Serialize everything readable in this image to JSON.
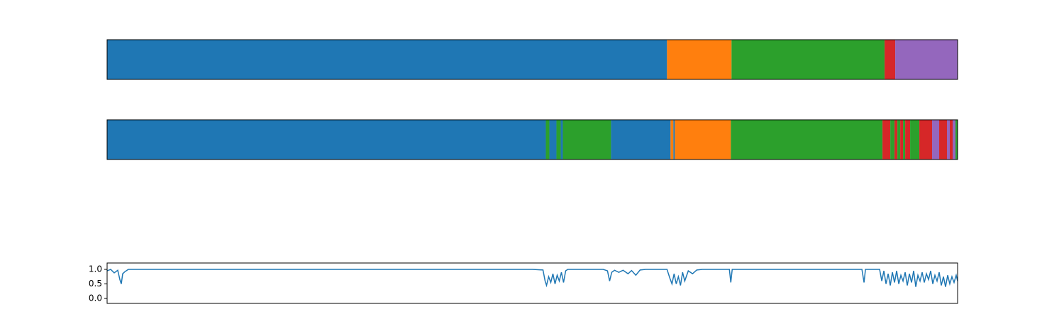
{
  "chart_data": [
    {
      "type": "segments",
      "xlim": [
        0,
        1200
      ],
      "segments": [
        {
          "start": 0,
          "end": 790,
          "color": "#1f77b4"
        },
        {
          "start": 790,
          "end": 881,
          "color": "#ff7f0e"
        },
        {
          "start": 881,
          "end": 1097,
          "color": "#2ca02c"
        },
        {
          "start": 1097,
          "end": 1112,
          "color": "#d62728"
        },
        {
          "start": 1112,
          "end": 1200,
          "color": "#9467bd"
        }
      ]
    },
    {
      "type": "segments",
      "xlim": [
        0,
        1200
      ],
      "segments": [
        {
          "start": 0,
          "end": 619,
          "color": "#1f77b4"
        },
        {
          "start": 619,
          "end": 624,
          "color": "#2ca02c"
        },
        {
          "start": 624,
          "end": 634,
          "color": "#1f77b4"
        },
        {
          "start": 634,
          "end": 640,
          "color": "#2ca02c"
        },
        {
          "start": 640,
          "end": 643,
          "color": "#1f77b4"
        },
        {
          "start": 643,
          "end": 711,
          "color": "#2ca02c"
        },
        {
          "start": 711,
          "end": 795,
          "color": "#1f77b4"
        },
        {
          "start": 795,
          "end": 799,
          "color": "#ff7f0e"
        },
        {
          "start": 799,
          "end": 801,
          "color": "#1f77b4"
        },
        {
          "start": 801,
          "end": 880,
          "color": "#ff7f0e"
        },
        {
          "start": 880,
          "end": 1094,
          "color": "#2ca02c"
        },
        {
          "start": 1094,
          "end": 1105,
          "color": "#d62728"
        },
        {
          "start": 1105,
          "end": 1111,
          "color": "#2ca02c"
        },
        {
          "start": 1111,
          "end": 1115,
          "color": "#d62728"
        },
        {
          "start": 1115,
          "end": 1119,
          "color": "#2ca02c"
        },
        {
          "start": 1119,
          "end": 1123,
          "color": "#d62728"
        },
        {
          "start": 1123,
          "end": 1126,
          "color": "#2ca02c"
        },
        {
          "start": 1126,
          "end": 1133,
          "color": "#d62728"
        },
        {
          "start": 1133,
          "end": 1146,
          "color": "#2ca02c"
        },
        {
          "start": 1146,
          "end": 1164,
          "color": "#d62728"
        },
        {
          "start": 1164,
          "end": 1174,
          "color": "#9467bd"
        },
        {
          "start": 1174,
          "end": 1185,
          "color": "#d62728"
        },
        {
          "start": 1185,
          "end": 1189,
          "color": "#9467bd"
        },
        {
          "start": 1189,
          "end": 1193,
          "color": "#d62728"
        },
        {
          "start": 1193,
          "end": 1197,
          "color": "#9467bd"
        },
        {
          "start": 1197,
          "end": 1200,
          "color": "#2ca02c"
        }
      ]
    },
    {
      "type": "line",
      "color": "#1f77b4",
      "xlim": [
        0,
        1200
      ],
      "ylim": [
        -0.17,
        1.22
      ],
      "yticks": [
        {
          "value": 0,
          "label": "0.0"
        },
        {
          "value": 0.5,
          "label": "0.5"
        },
        {
          "value": 1,
          "label": "1.0"
        }
      ],
      "x": [
        0,
        5,
        10,
        15,
        18,
        20,
        22,
        25,
        30,
        600,
        615,
        618,
        620,
        623,
        626,
        629,
        632,
        635,
        638,
        641,
        644,
        647,
        650,
        700,
        706,
        709,
        712,
        716,
        722,
        728,
        735,
        740,
        746,
        752,
        760,
        790,
        794,
        797,
        800,
        803,
        806,
        809,
        812,
        815,
        820,
        826,
        832,
        840,
        878,
        880,
        882,
        1065,
        1068,
        1070,
        1090,
        1093,
        1096,
        1099,
        1102,
        1105,
        1108,
        1111,
        1114,
        1117,
        1120,
        1123,
        1126,
        1129,
        1132,
        1135,
        1138,
        1141,
        1144,
        1147,
        1150,
        1153,
        1156,
        1159,
        1162,
        1165,
        1168,
        1171,
        1174,
        1177,
        1180,
        1183,
        1186,
        1189,
        1192,
        1195,
        1198,
        1200
      ],
      "values": [
        0.95,
        1.0,
        0.88,
        0.97,
        0.65,
        0.5,
        0.85,
        0.92,
        1.0,
        1.0,
        0.98,
        0.6,
        0.45,
        0.75,
        0.55,
        0.85,
        0.5,
        0.8,
        0.6,
        0.9,
        0.55,
        0.95,
        1.0,
        1.0,
        0.95,
        0.6,
        0.9,
        0.97,
        0.9,
        0.97,
        0.85,
        0.96,
        0.8,
        0.98,
        1.0,
        1.0,
        0.7,
        0.5,
        0.85,
        0.5,
        0.75,
        0.45,
        0.9,
        0.6,
        0.95,
        0.85,
        0.98,
        1.0,
        1.0,
        0.55,
        1.0,
        1.0,
        0.55,
        1.0,
        1.0,
        0.6,
        0.95,
        0.5,
        0.85,
        0.45,
        0.9,
        0.55,
        0.95,
        0.5,
        0.8,
        0.6,
        0.9,
        0.45,
        0.85,
        0.55,
        0.95,
        0.4,
        0.8,
        0.6,
        0.9,
        0.55,
        0.85,
        0.65,
        0.95,
        0.5,
        0.8,
        0.6,
        0.9,
        0.45,
        0.75,
        0.4,
        0.8,
        0.5,
        0.75,
        0.55,
        0.8,
        0.6
      ]
    }
  ]
}
